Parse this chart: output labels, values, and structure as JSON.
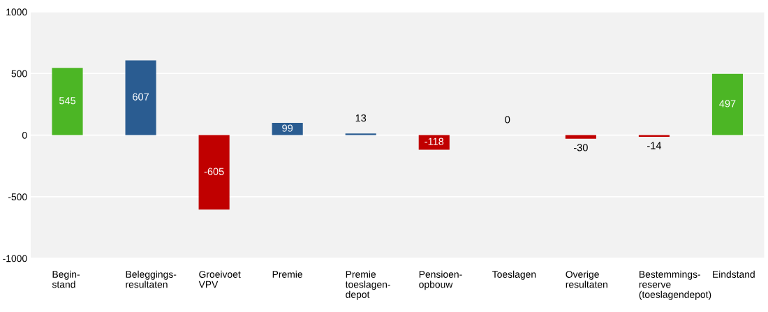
{
  "chart_data": {
    "type": "bar",
    "categories": [
      "Begin-\nstand",
      "Beleggings-\nresultaten",
      "Groeivoet\nVPV",
      "Premie",
      "Premie\ntoeslagen-\ndepot",
      "Pensioen-\nopbouw",
      "Toeslagen",
      "Overige\nresultaten",
      "Bestemmings-\nreserve\n(toeslagendepot)",
      "Eindstand"
    ],
    "values": [
      545,
      607,
      -605,
      99,
      13,
      -118,
      0,
      -30,
      -14,
      497
    ],
    "colors": [
      "#4cb625",
      "#2a5c91",
      "#c00000",
      "#2a5c91",
      "#2a5c91",
      "#c00000",
      "#2a5c91",
      "#c00000",
      "#c00000",
      "#4cb625"
    ],
    "ylim": [
      -1000,
      1000
    ],
    "yticks": [
      -1000,
      -500,
      0,
      500,
      1000
    ],
    "grid": "y",
    "data_labels": true
  }
}
